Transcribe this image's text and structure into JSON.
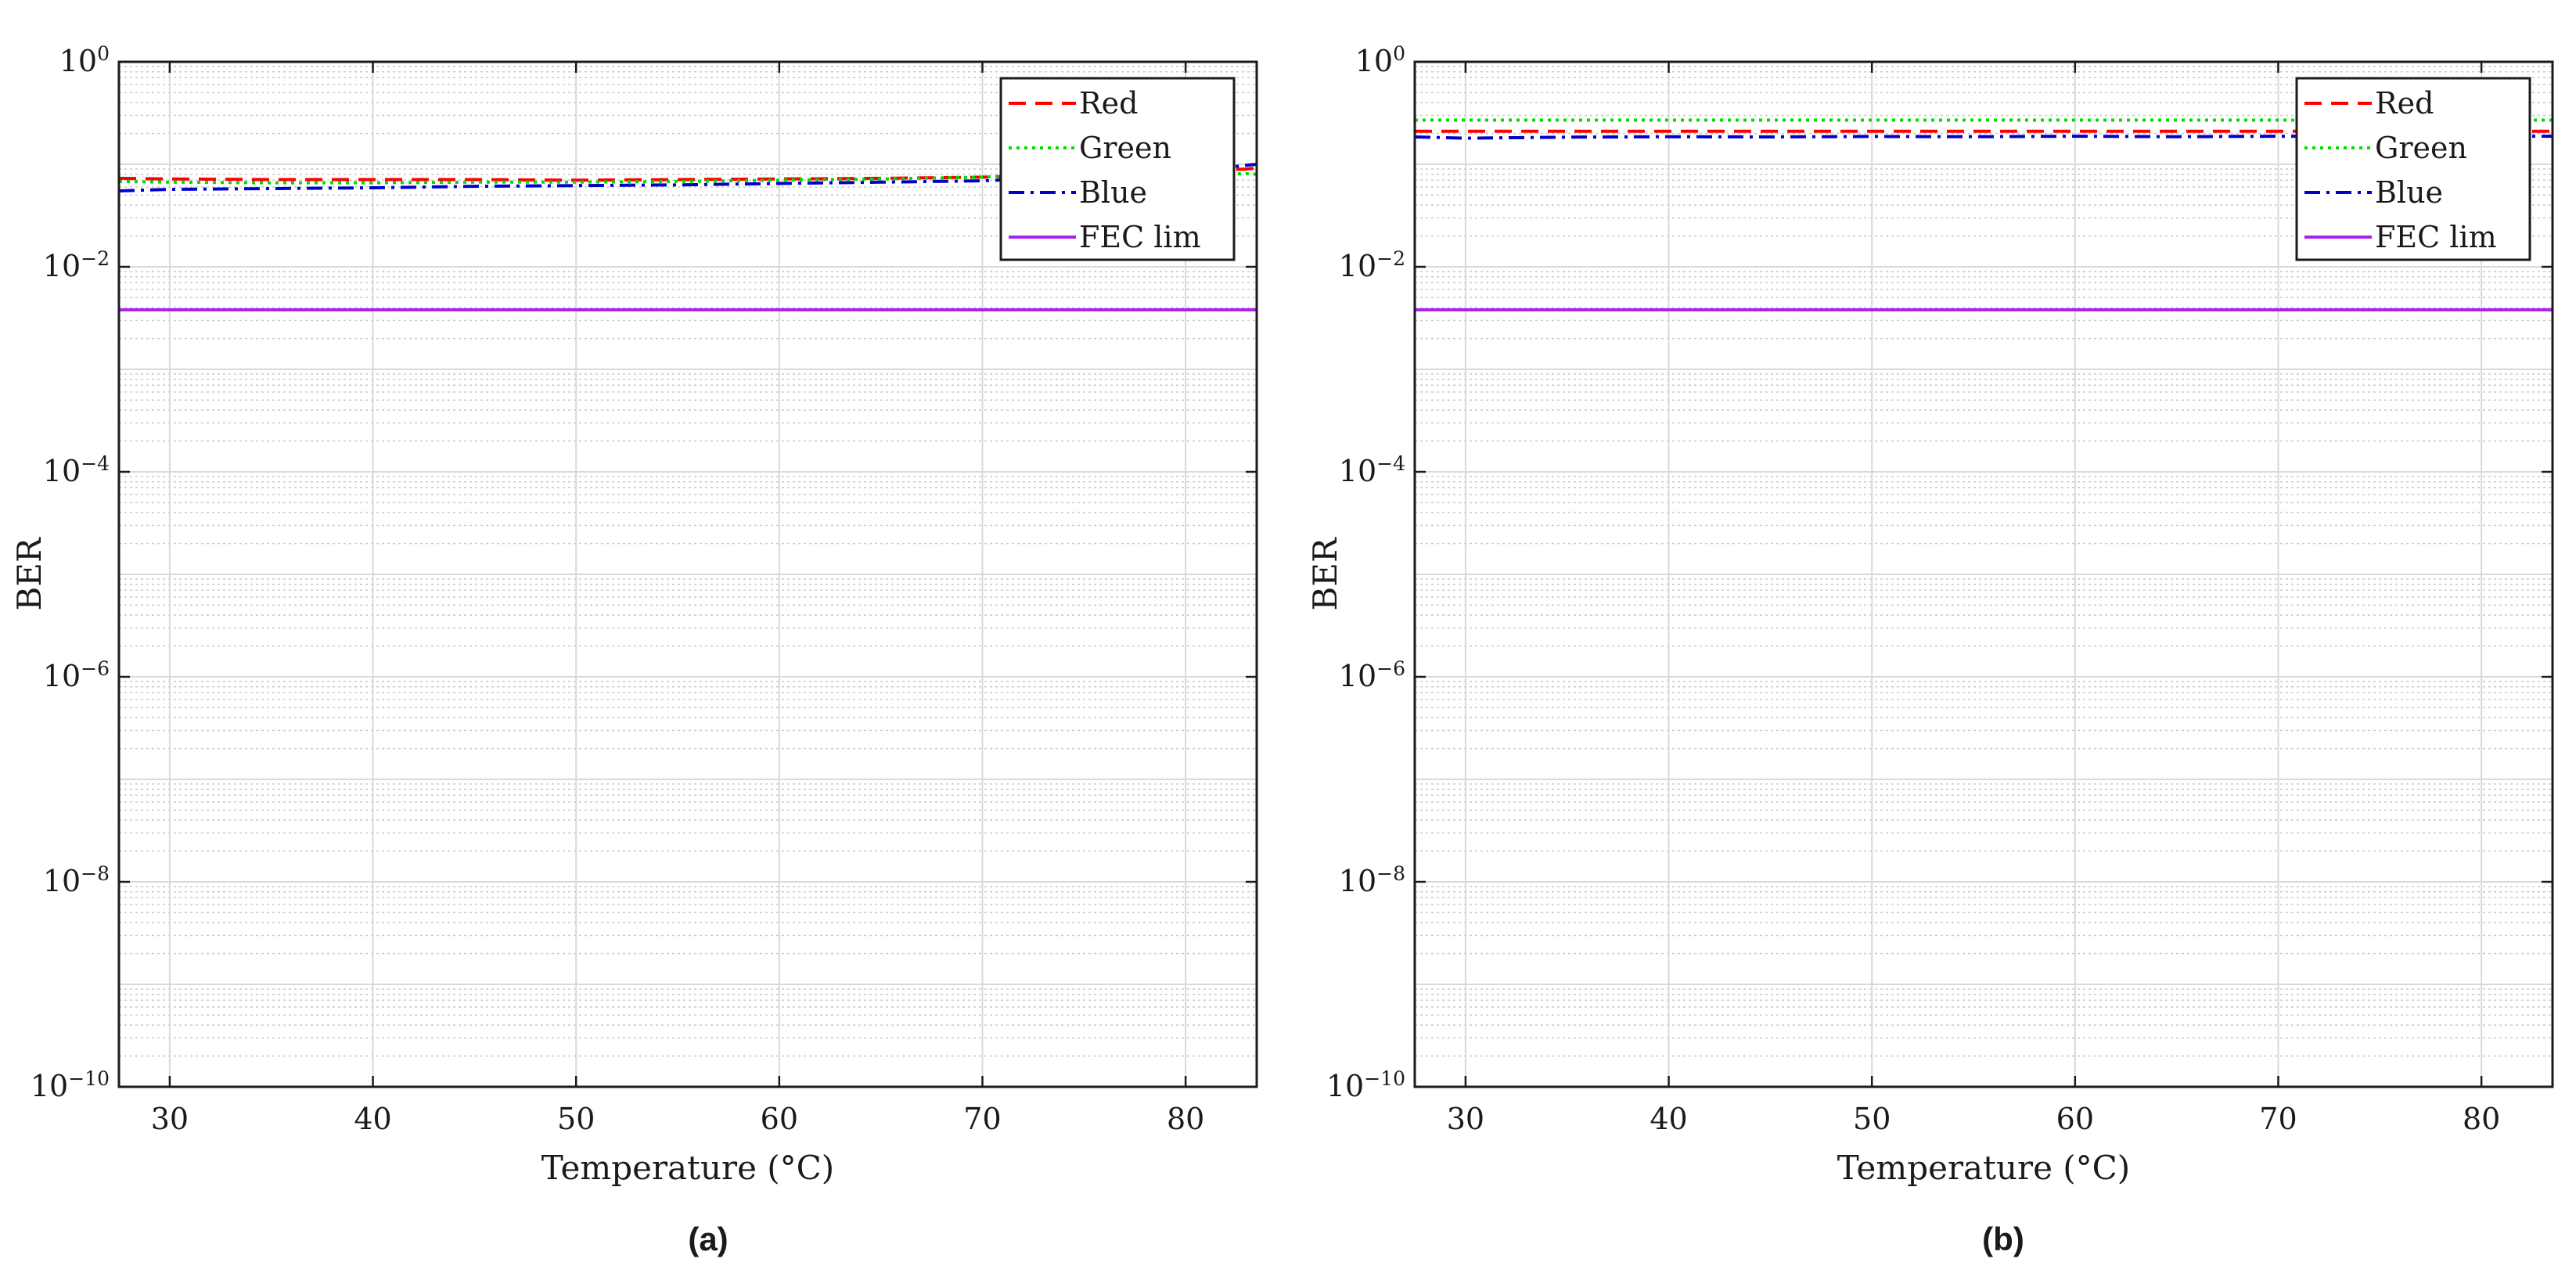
{
  "chart_data": [
    {
      "type": "line",
      "caption": "(a)",
      "xlabel": "Temperature (°C)",
      "ylabel": "BER",
      "xlim": [
        27.5,
        83.5
      ],
      "ylim_log10": [
        -10,
        0
      ],
      "x_ticks": [
        30,
        40,
        50,
        60,
        70,
        80
      ],
      "x_tick_labels": [
        "30",
        "40",
        "50",
        "60",
        "70",
        "80"
      ],
      "y_tick_exponents": [
        0,
        -2,
        -4,
        -6,
        -8,
        -10
      ],
      "y_tick_base": "10",
      "y_tick_sup": [
        "0",
        "−2",
        "−4",
        "−6",
        "−8",
        "−10"
      ],
      "grid": true,
      "minor_grid": true,
      "legend_position": "top-right",
      "x": [
        27.5,
        30,
        35,
        40,
        45,
        50,
        55,
        60,
        65,
        70,
        72,
        75,
        80,
        83,
        83.5
      ],
      "series": [
        {
          "name": "Red",
          "color": "#ff0000",
          "dash": "dashed",
          "values": [
            0.073,
            0.072,
            0.071,
            0.071,
            0.071,
            0.07,
            0.071,
            0.072,
            0.073,
            0.075,
            0.077,
            0.08,
            0.085,
            0.09,
            0.092
          ]
        },
        {
          "name": "Green",
          "color": "#00dd00",
          "dash": "dotted",
          "values": [
            0.068,
            0.067,
            0.066,
            0.066,
            0.067,
            0.067,
            0.068,
            0.07,
            0.072,
            0.075,
            0.078,
            0.079,
            0.08,
            0.081,
            0.08
          ]
        },
        {
          "name": "Blue",
          "color": "#0000cc",
          "dash": "dashdot",
          "values": [
            0.055,
            0.057,
            0.058,
            0.059,
            0.061,
            0.062,
            0.063,
            0.065,
            0.067,
            0.069,
            0.072,
            0.076,
            0.082,
            0.098,
            0.1
          ]
        },
        {
          "name": "FEC lim",
          "color": "#aa22ee",
          "dash": "solid",
          "values": [
            0.0038,
            0.0038,
            0.0038,
            0.0038,
            0.0038,
            0.0038,
            0.0038,
            0.0038,
            0.0038,
            0.0038,
            0.0038,
            0.0038,
            0.0038,
            0.0038,
            0.0038
          ]
        }
      ]
    },
    {
      "type": "line",
      "caption": "(b)",
      "xlabel": "Temperature (°C)",
      "ylabel": "BER",
      "xlim": [
        27.5,
        83.5
      ],
      "ylim_log10": [
        -10,
        0
      ],
      "x_ticks": [
        30,
        40,
        50,
        60,
        70,
        80
      ],
      "x_tick_labels": [
        "30",
        "40",
        "50",
        "60",
        "70",
        "80"
      ],
      "y_tick_exponents": [
        0,
        -2,
        -4,
        -6,
        -8,
        -10
      ],
      "y_tick_base": "10",
      "y_tick_sup": [
        "0",
        "−2",
        "−4",
        "−6",
        "−8",
        "−10"
      ],
      "grid": true,
      "minor_grid": true,
      "legend_position": "top-right",
      "x": [
        27.5,
        30,
        35,
        40,
        45,
        50,
        55,
        60,
        65,
        70,
        75,
        80,
        83.5
      ],
      "series": [
        {
          "name": "Red",
          "color": "#ff0000",
          "dash": "dashed",
          "values": [
            0.21,
            0.21,
            0.21,
            0.21,
            0.21,
            0.21,
            0.21,
            0.21,
            0.21,
            0.21,
            0.21,
            0.21,
            0.21
          ]
        },
        {
          "name": "Green",
          "color": "#00dd00",
          "dash": "dotted",
          "values": [
            0.27,
            0.27,
            0.27,
            0.27,
            0.27,
            0.27,
            0.27,
            0.27,
            0.27,
            0.27,
            0.27,
            0.27,
            0.27
          ]
        },
        {
          "name": "Blue",
          "color": "#0000cc",
          "dash": "dashdot",
          "values": [
            0.185,
            0.18,
            0.184,
            0.186,
            0.185,
            0.187,
            0.186,
            0.188,
            0.186,
            0.188,
            0.187,
            0.188,
            0.188
          ]
        },
        {
          "name": "FEC lim",
          "color": "#aa22ee",
          "dash": "solid",
          "values": [
            0.0038,
            0.0038,
            0.0038,
            0.0038,
            0.0038,
            0.0038,
            0.0038,
            0.0038,
            0.0038,
            0.0038,
            0.0038,
            0.0038,
            0.0038
          ]
        }
      ]
    }
  ]
}
